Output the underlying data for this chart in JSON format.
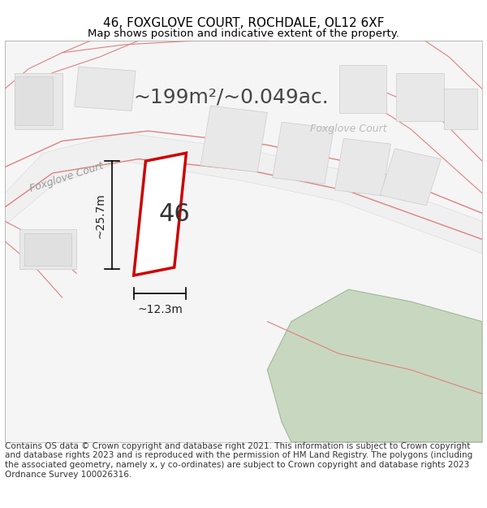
{
  "title_line1": "46, FOXGLOVE COURT, ROCHDALE, OL12 6XF",
  "title_line2": "Map shows position and indicative extent of the property.",
  "area_label": "~199m²/~0.049ac.",
  "property_number": "46",
  "dim_height": "~25.7m",
  "dim_width": "~12.3m",
  "street_label1": "Foxglove Court",
  "street_label2": "Foxglove Court",
  "footer_text": "Contains OS data © Crown copyright and database right 2021. This information is subject to Crown copyright and database rights 2023 and is reproduced with the permission of HM Land Registry. The polygons (including the associated geometry, namely x, y co-ordinates) are subject to Crown copyright and database rights 2023 Ordnance Survey 100026316.",
  "bg_color": "#ffffff",
  "map_bg": "#f7f7f7",
  "road_color": "#f5c0c0",
  "road_stroke": "#e08080",
  "property_color": "#cc0000",
  "building_fill": "#e8e8e8",
  "green_fill": "#c8d8c0",
  "title_fontsize": 11,
  "subtitle_fontsize": 9.5,
  "area_fontsize": 18,
  "number_fontsize": 22,
  "dim_fontsize": 10,
  "footer_fontsize": 7.5
}
